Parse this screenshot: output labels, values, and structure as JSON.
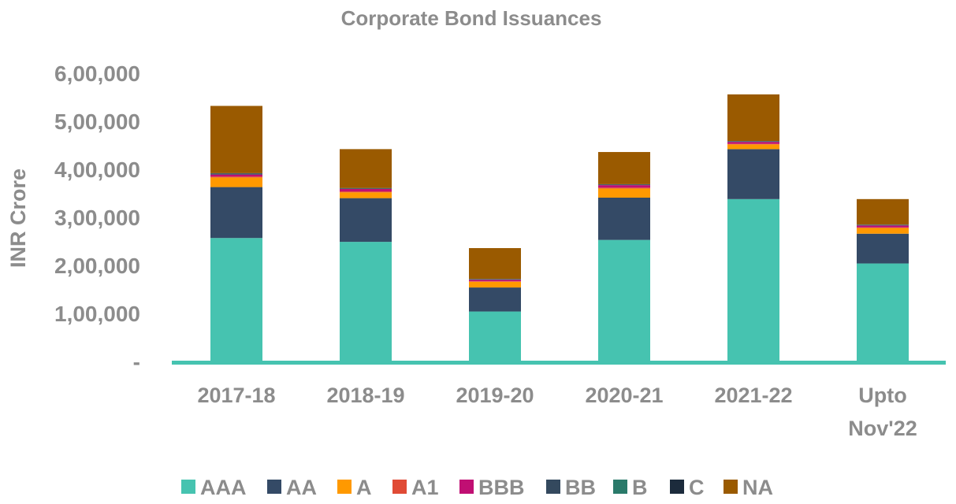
{
  "chart_data": {
    "type": "bar",
    "stacked": true,
    "title": "Corporate Bond Issuances",
    "xlabel": "",
    "ylabel": "INR Crore",
    "ylim": [
      0,
      600000
    ],
    "yticks": [
      0,
      100000,
      200000,
      300000,
      400000,
      500000,
      600000
    ],
    "ytick_labels": [
      "-",
      "1,00,000",
      "2,00,000",
      "3,00,000",
      "4,00,000",
      "5,00,000",
      "6,00,000"
    ],
    "grid": false,
    "legend": "bottom",
    "categories": [
      [
        "2017-18"
      ],
      [
        "2018-19"
      ],
      [
        "2019-20"
      ],
      [
        "2020-21"
      ],
      [
        "2021-22"
      ],
      [
        "Upto",
        "Nov'22"
      ]
    ],
    "series": [
      {
        "name": "AAA",
        "color": "#46c3b0",
        "values": [
          257000,
          249000,
          104000,
          253000,
          338000,
          204000
        ]
      },
      {
        "name": "AA",
        "color": "#344a66",
        "values": [
          106000,
          91000,
          50000,
          88000,
          104000,
          62000
        ]
      },
      {
        "name": "A",
        "color": "#ff9900",
        "values": [
          20000,
          12000,
          12000,
          19000,
          10000,
          12000
        ]
      },
      {
        "name": "A1",
        "color": "#e04b35",
        "values": [
          2000,
          2000,
          1000,
          2000,
          1000,
          1000
        ]
      },
      {
        "name": "BBB",
        "color": "#c00f73",
        "values": [
          4000,
          5000,
          3000,
          5000,
          4000,
          4000
        ]
      },
      {
        "name": "BB",
        "color": "#34495e",
        "values": [
          2000,
          1000,
          1000,
          1000,
          1000,
          1000
        ]
      },
      {
        "name": "B",
        "color": "#2a7a6a",
        "values": [
          500,
          500,
          500,
          500,
          500,
          500
        ]
      },
      {
        "name": "C",
        "color": "#1c2b3c",
        "values": [
          500,
          500,
          500,
          500,
          500,
          500
        ]
      },
      {
        "name": "NA",
        "color": "#9a5a00",
        "values": [
          140000,
          81000,
          64000,
          67000,
          97000,
          53000
        ]
      }
    ],
    "axis_color": "#46c3b0"
  }
}
